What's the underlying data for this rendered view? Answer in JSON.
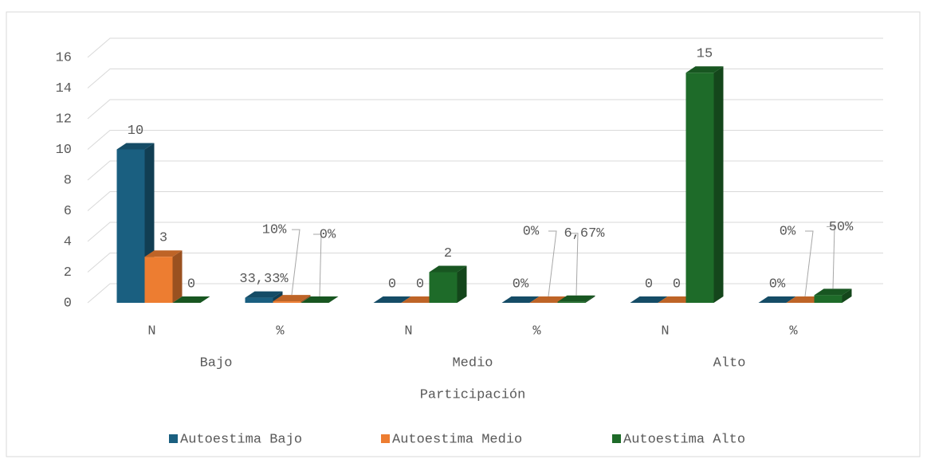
{
  "chart_data": {
    "type": "bar3d",
    "categories": [
      "N",
      "%",
      "N",
      "%",
      "N",
      "%"
    ],
    "groups": [
      "Bajo",
      "Medio",
      "Alto"
    ],
    "x_label": "Participación",
    "series": [
      {
        "name": "Autoestima Bajo",
        "color": "#1a5f80",
        "values": [
          10,
          0.3333,
          0,
          0,
          0,
          0
        ],
        "value_labels": [
          "10",
          "33,33%",
          "0",
          "0%",
          "0",
          "0%"
        ]
      },
      {
        "name": "Autoestima Medio",
        "color": "#ed7d31",
        "values": [
          3,
          0.1,
          0,
          0,
          0,
          0
        ],
        "value_labels": [
          "3",
          "10%",
          "0",
          "0%",
          "0",
          "0%"
        ]
      },
      {
        "name": "Autoestima Alto",
        "color": "#1e6b29",
        "values": [
          0,
          0,
          2,
          0.0667,
          15,
          0.5
        ],
        "value_labels": [
          "0",
          "0%",
          "2",
          "6,67%",
          "15",
          "50%"
        ]
      }
    ],
    "ylim": [
      0,
      16
    ],
    "yticks": [
      0,
      2,
      4,
      6,
      8,
      10,
      12,
      14,
      16
    ],
    "grid": true,
    "legend": "bottom"
  }
}
